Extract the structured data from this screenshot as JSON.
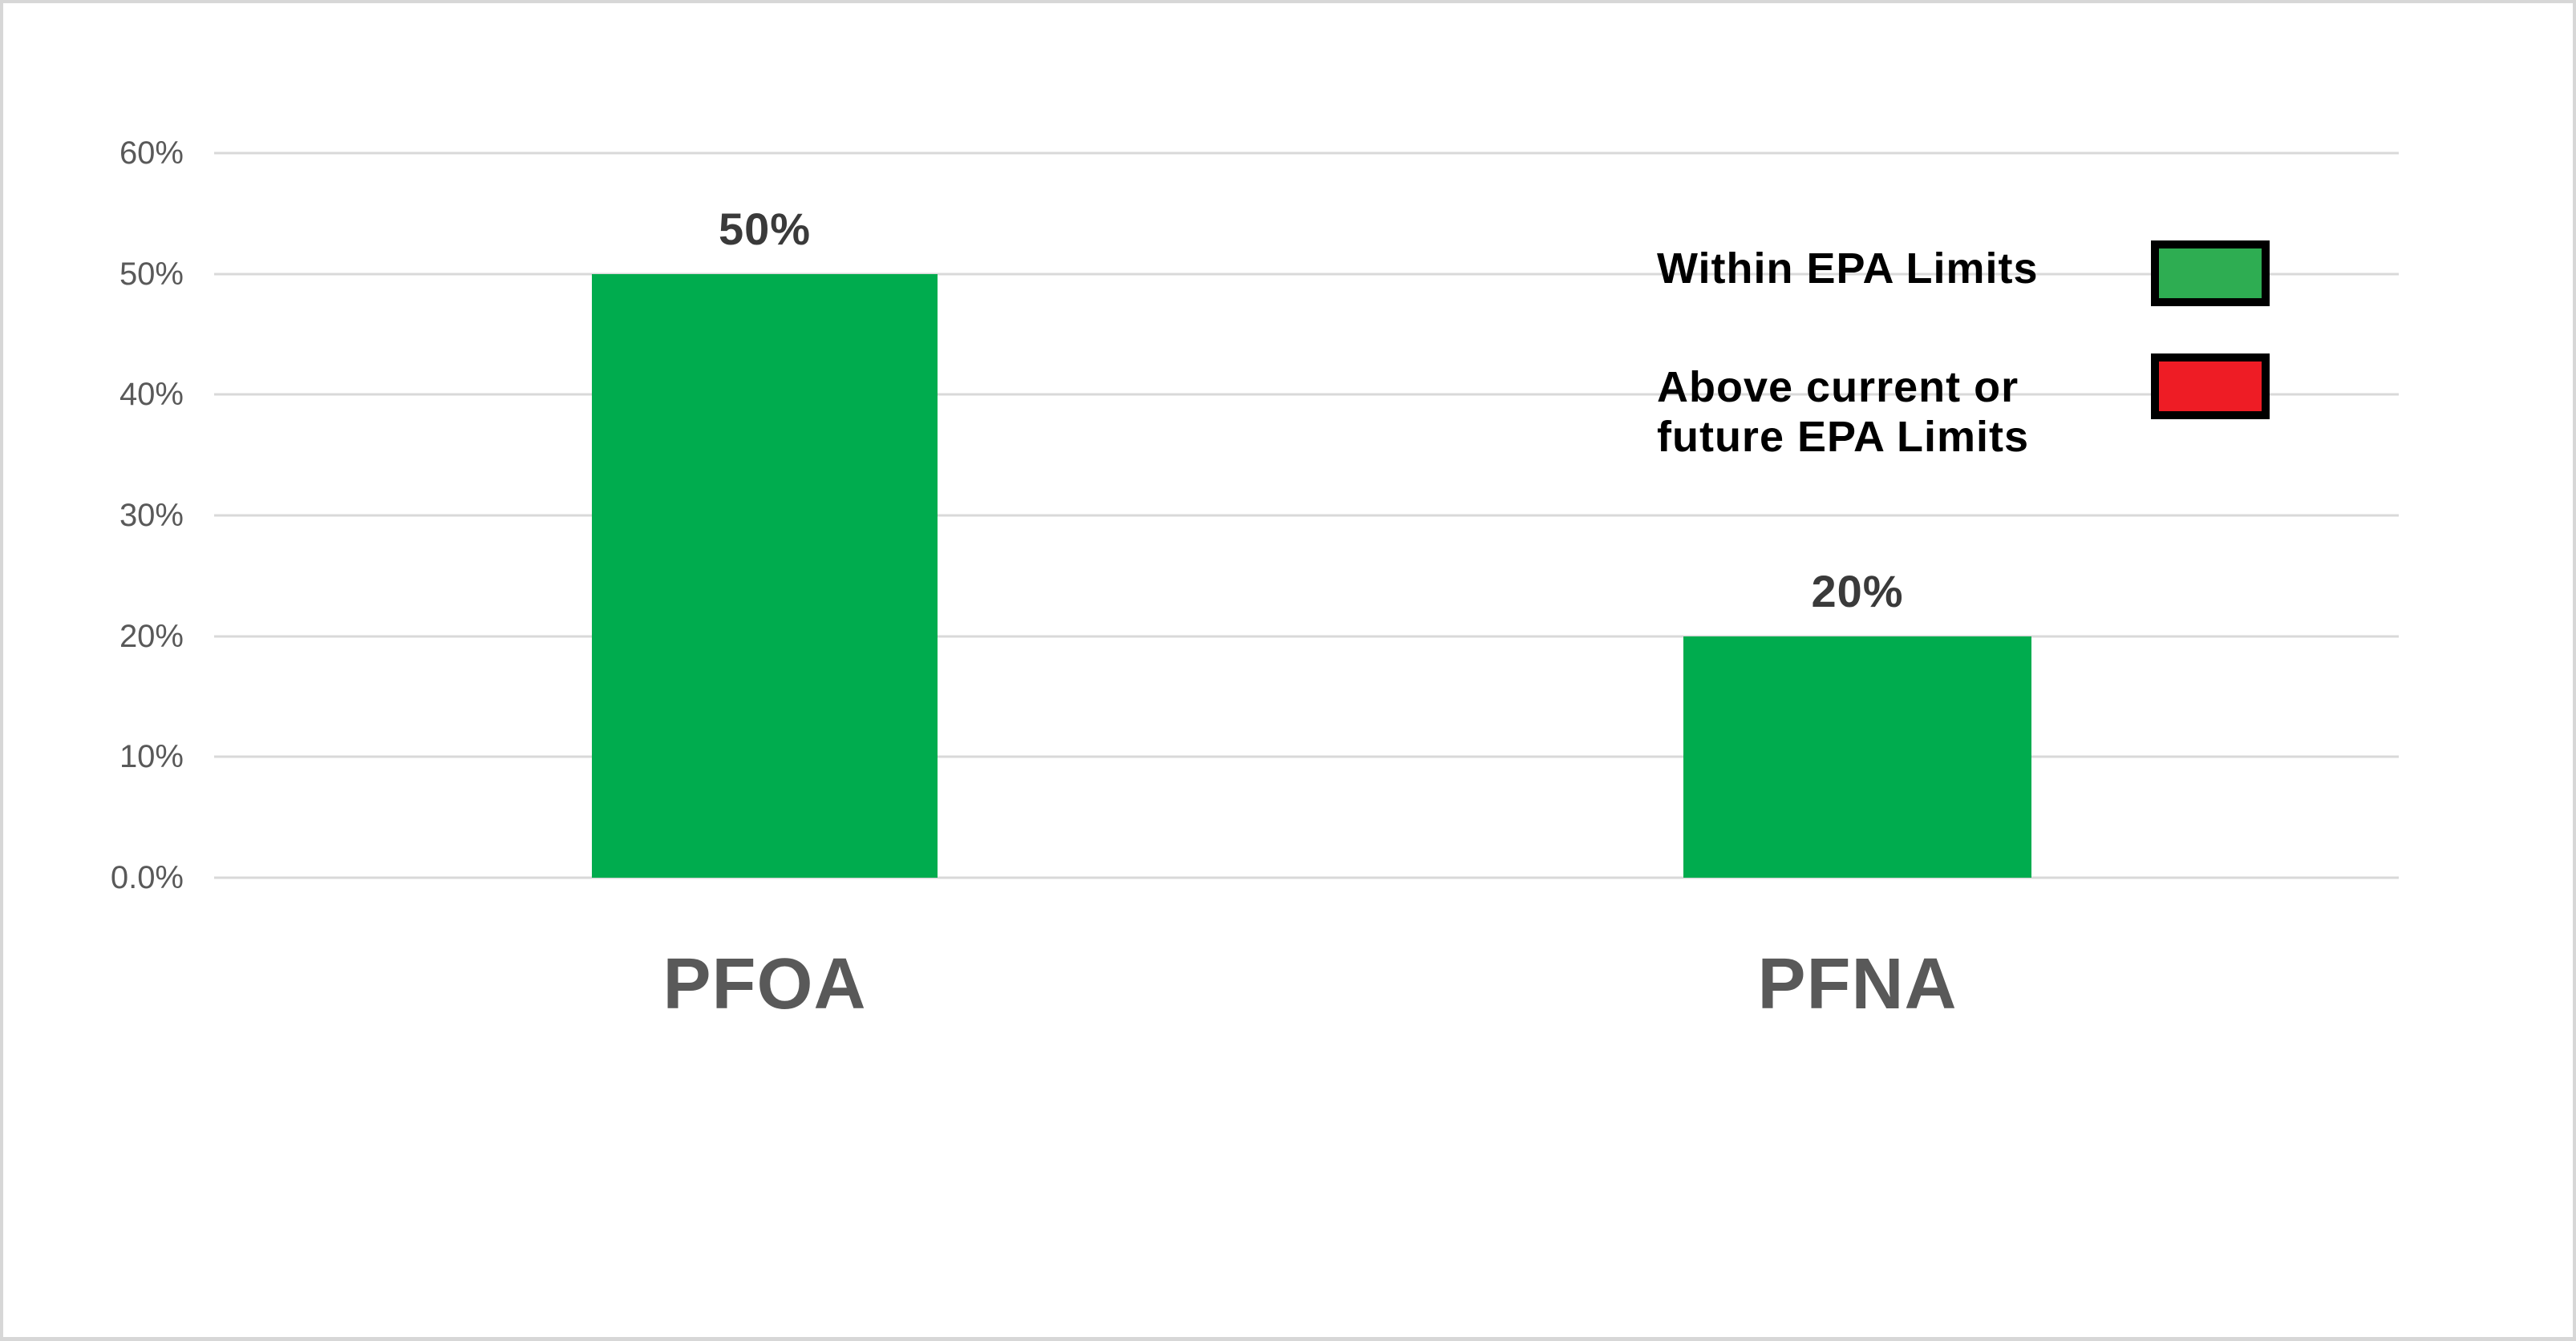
{
  "chart_data": {
    "type": "bar",
    "title": "",
    "xlabel": "",
    "ylabel": "",
    "categories": [
      "PFOA",
      "PFNA"
    ],
    "values": [
      50,
      20
    ],
    "value_labels": [
      "50%",
      "20%"
    ],
    "ylim": [
      0,
      60
    ],
    "yticks": [
      {
        "value": 60,
        "label": "60%"
      },
      {
        "value": 50,
        "label": "50%"
      },
      {
        "value": 40,
        "label": "40%"
      },
      {
        "value": 30,
        "label": "30%"
      },
      {
        "value": 20,
        "label": "20%"
      },
      {
        "value": 10,
        "label": "10%"
      },
      {
        "value": 0,
        "label": "0.0%"
      }
    ],
    "grid": true,
    "grid_color": "#D9D9D9",
    "bar_color": "#00AC4E",
    "axis_label_color": "#595959",
    "value_label_color": "#3A3A3A",
    "frame_color": "#D7D7D7",
    "legend": {
      "position": "upper-right",
      "entries": [
        {
          "label": "Within EPA Limits",
          "label_lines": [
            "Within EPA Limits"
          ],
          "color": "#2EAD52",
          "swatch_border": "#000000"
        },
        {
          "label": "Above current or future EPA Limits",
          "label_lines": [
            "Above current or",
            "future EPA Limits"
          ],
          "color": "#EE1C25",
          "swatch_border": "#000000"
        }
      ]
    }
  }
}
